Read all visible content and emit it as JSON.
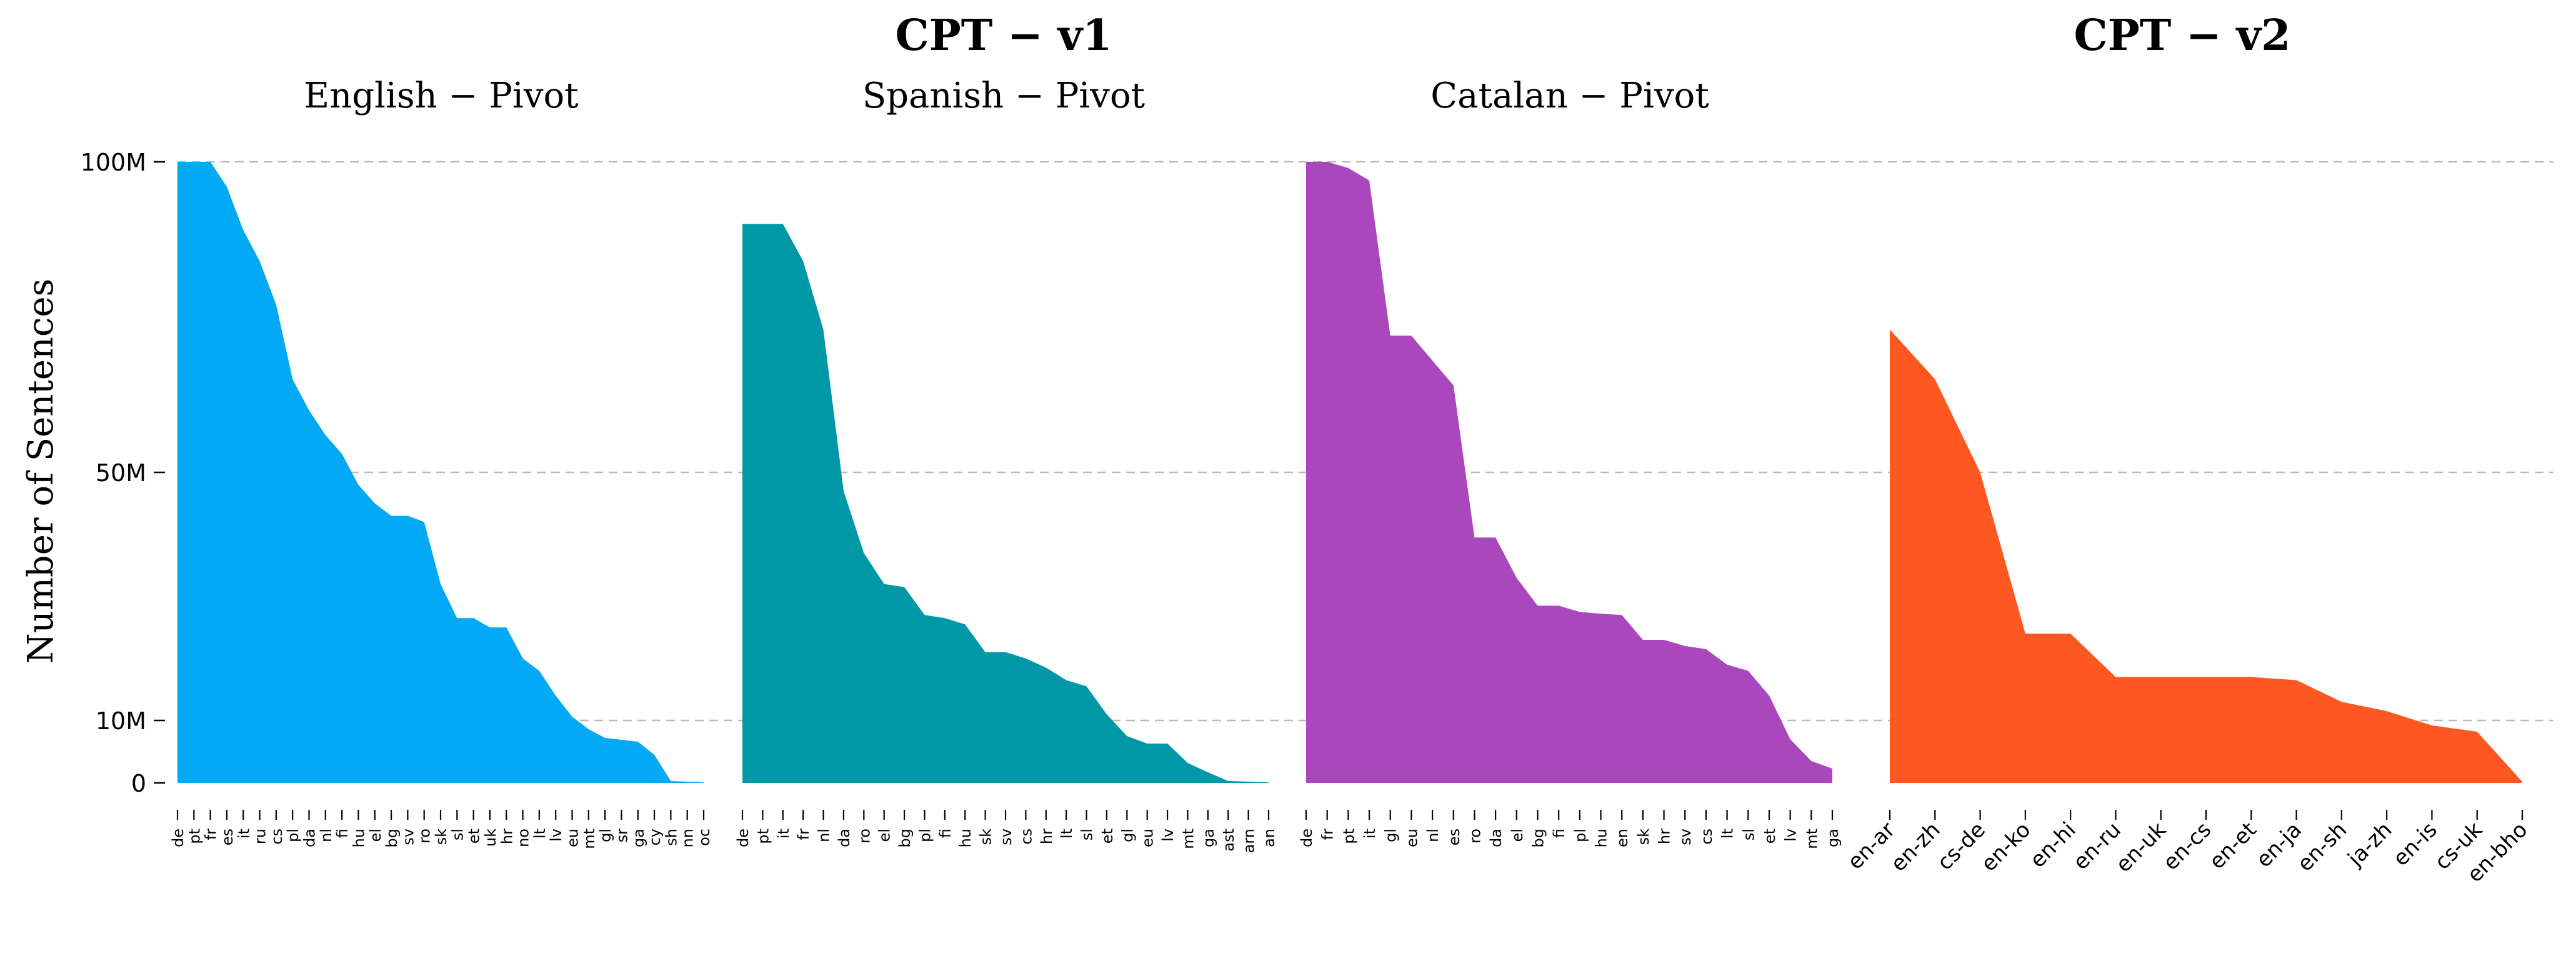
{
  "colors": {
    "english": "#03A9F4",
    "spanish": "#0097A7",
    "catalan": "#AB47BC",
    "v2": "#FF5722",
    "grid": "#bbbbbb",
    "text": "#000000"
  },
  "chart_data": {
    "type": "area",
    "group_titles": [
      "CPT − v1",
      "CPT − v2"
    ],
    "ylabel": "Number of Sentences",
    "ylim": [
      0,
      100000000
    ],
    "scale": "piecewise-linear",
    "yticks": [
      {
        "value": 0,
        "label": "0"
      },
      {
        "value": 10000000,
        "label": "10M"
      },
      {
        "value": 50000000,
        "label": "50M"
      },
      {
        "value": 100000000,
        "label": "100M"
      }
    ],
    "grid": "horizontal dashed",
    "panels": [
      {
        "group": "CPT − v1",
        "title": "English − Pivot",
        "color_key": "english",
        "categories": [
          "de",
          "pt",
          "fr",
          "es",
          "it",
          "ru",
          "cs",
          "pl",
          "da",
          "nl",
          "fi",
          "hu",
          "el",
          "bg",
          "sv",
          "ro",
          "sk",
          "sl",
          "et",
          "uk",
          "hr",
          "no",
          "lt",
          "lv",
          "eu",
          "mt",
          "gl",
          "sr",
          "ga",
          "cy",
          "sh",
          "nn",
          "oc"
        ],
        "values": [
          100000000,
          100000000,
          100000000,
          96000000,
          89000000,
          84000000,
          77000000,
          65000000,
          60000000,
          56000000,
          53000000,
          48000000,
          45000000,
          43000000,
          43000000,
          42000000,
          32000000,
          26500000,
          26500000,
          25000000,
          25000000,
          20000000,
          18000000,
          14000000,
          10600000,
          8600000,
          7200000,
          6900000,
          6600000,
          4500000,
          300000,
          200000,
          100000
        ]
      },
      {
        "group": "CPT − v1",
        "title": "Spanish − Pivot",
        "color_key": "spanish",
        "categories": [
          "de",
          "pt",
          "it",
          "fr",
          "nl",
          "da",
          "ro",
          "el",
          "bg",
          "pl",
          "fi",
          "hu",
          "sk",
          "sv",
          "cs",
          "hr",
          "lt",
          "sl",
          "et",
          "gl",
          "eu",
          "lv",
          "mt",
          "ga",
          "ast",
          "arn",
          "an"
        ],
        "values": [
          90000000,
          90000000,
          90000000,
          84000000,
          73000000,
          47000000,
          37000000,
          32000000,
          31500000,
          27000000,
          26500000,
          25500000,
          21000000,
          21000000,
          20000000,
          18500000,
          16500000,
          15500000,
          11000000,
          7500000,
          6300000,
          6300000,
          3200000,
          1700000,
          300000,
          200000,
          100000
        ]
      },
      {
        "group": "CPT − v1",
        "title": "Catalan − Pivot",
        "color_key": "catalan",
        "categories": [
          "de",
          "fr",
          "pt",
          "it",
          "gl",
          "eu",
          "nl",
          "es",
          "ro",
          "da",
          "el",
          "bg",
          "fi",
          "pl",
          "hu",
          "en",
          "sk",
          "hr",
          "sv",
          "cs",
          "lt",
          "sl",
          "et",
          "lv",
          "mt",
          "ga"
        ],
        "values": [
          100000000,
          100000000,
          99000000,
          97000000,
          72000000,
          72000000,
          68000000,
          64000000,
          39500000,
          39500000,
          33000000,
          28500000,
          28500000,
          27500000,
          27200000,
          27000000,
          23000000,
          23000000,
          22000000,
          21500000,
          19000000,
          18000000,
          14000000,
          7000000,
          3500000,
          2300000
        ]
      },
      {
        "group": "CPT − v2",
        "title": "",
        "color_key": "v2",
        "categories": [
          "en-ar",
          "en-zh",
          "cs-de",
          "en-ko",
          "en-hi",
          "en-ru",
          "en-uk",
          "en-cs",
          "en-et",
          "en-ja",
          "en-sh",
          "ja-zh",
          "en-is",
          "cs-uk",
          "en-bho"
        ],
        "values": [
          73000000,
          65000000,
          50000000,
          24000000,
          24000000,
          17000000,
          17000000,
          17000000,
          17000000,
          16500000,
          13000000,
          11500000,
          9200000,
          8200000,
          200000
        ]
      }
    ]
  }
}
